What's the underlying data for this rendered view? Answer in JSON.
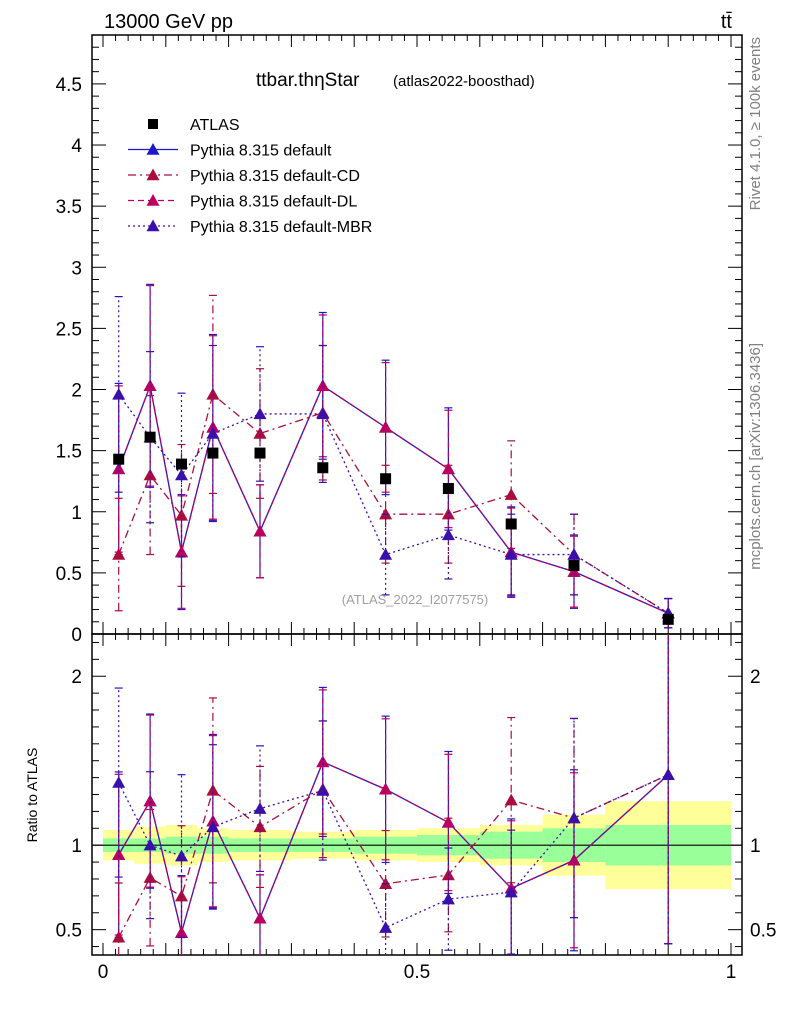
{
  "header": {
    "energy_label": "13000 GeV pp",
    "process_label": "tt̄",
    "rivet_label": "Rivet 4.1.0, ≥ 100k events",
    "mcplots_label": "mcplots.cern.ch [arXiv:1306.3436]"
  },
  "chart_data": {
    "type": "scatter",
    "title": "ttbar.thηStar",
    "title_suffix": "(atlas2022-boosthad)",
    "watermark": "(ATLAS_2022_I2077575)",
    "xlim": [
      0,
      1
    ],
    "ylim_main": [
      0,
      4.9
    ],
    "ylim_ratio": [
      0.35,
      2.25
    ],
    "xticks": [
      "0",
      "0.5",
      "1"
    ],
    "yticks_main": [
      "0",
      "0.5",
      "1",
      "1.5",
      "2",
      "2.5",
      "3",
      "3.5",
      "4",
      "4.5"
    ],
    "yticks_ratio": [
      "0.5",
      "1",
      "2"
    ],
    "ylabel_ratio": "Ratio to ATLAS",
    "bin_edges": [
      0,
      0.05,
      0.1,
      0.15,
      0.2,
      0.3,
      0.4,
      0.5,
      0.6,
      0.7,
      0.8,
      1.0
    ],
    "data": {
      "name": "ATLAS",
      "x": [
        0.025,
        0.075,
        0.125,
        0.175,
        0.25,
        0.35,
        0.45,
        0.55,
        0.65,
        0.75,
        0.9
      ],
      "y": [
        1.43,
        1.61,
        1.39,
        1.48,
        1.48,
        1.36,
        1.27,
        1.19,
        0.9,
        0.56,
        0.12
      ],
      "band_inner": [
        0.04,
        0.04,
        0.05,
        0.05,
        0.04,
        0.04,
        0.05,
        0.06,
        0.08,
        0.1,
        0.12
      ],
      "band_outer": [
        0.09,
        0.11,
        0.12,
        0.1,
        0.09,
        0.08,
        0.09,
        0.1,
        0.12,
        0.18,
        0.26
      ]
    },
    "series": [
      {
        "name": "Pythia 8.315 default",
        "color": "#1a1acc",
        "dash": "none",
        "y": [
          1.35,
          2.03,
          0.67,
          1.69,
          0.84,
          2.03,
          1.69,
          1.35,
          0.67,
          0.51,
          0.17
        ],
        "err": [
          0.7,
          0.83,
          0.47,
          0.76,
          0.38,
          0.6,
          0.55,
          0.5,
          0.37,
          0.3,
          0.12
        ]
      },
      {
        "name": "Pythia 8.315 default-CD",
        "color": "#aa0e3c",
        "dash": "8,4,2,4",
        "y": [
          0.65,
          1.3,
          0.97,
          1.96,
          1.64,
          1.81,
          0.98,
          0.98,
          1.14,
          0.65,
          0.17
        ],
        "err": [
          0.46,
          0.65,
          0.58,
          0.81,
          0.53,
          0.55,
          0.4,
          0.4,
          0.44,
          0.33,
          0.12
        ]
      },
      {
        "name": "Pythia 8.315 default-DL",
        "color": "#bb0060",
        "dash": "6,4",
        "y": [
          1.35,
          2.03,
          0.67,
          1.69,
          0.84,
          2.03,
          1.69,
          1.35,
          0.67,
          0.51,
          0.17
        ],
        "err": [
          0.68,
          0.82,
          0.46,
          0.75,
          0.38,
          0.58,
          0.53,
          0.48,
          0.36,
          0.29,
          0.12
        ]
      },
      {
        "name": "Pythia 8.315 default-MBR",
        "color": "#3a10aa",
        "dash": "2,3",
        "y": [
          1.96,
          1.61,
          1.3,
          1.64,
          1.8,
          1.8,
          0.65,
          0.81,
          0.65,
          0.65,
          0.17
        ],
        "err": [
          0.8,
          0.7,
          0.67,
          0.72,
          0.55,
          0.56,
          0.33,
          0.36,
          0.33,
          0.33,
          0.12
        ]
      }
    ]
  }
}
